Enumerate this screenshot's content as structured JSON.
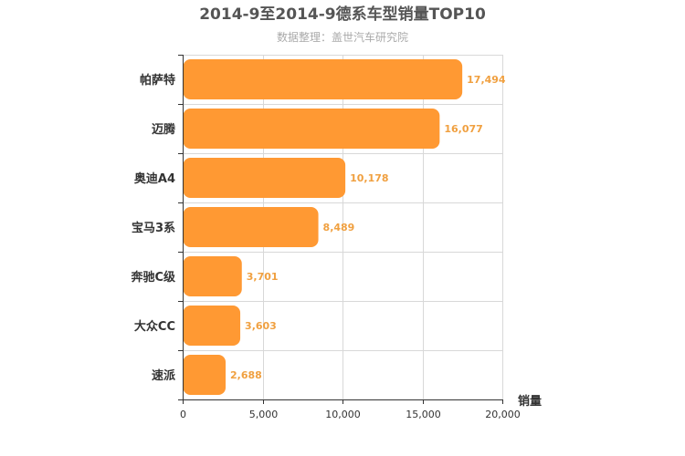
{
  "chart_data": {
    "type": "bar",
    "orientation": "horizontal",
    "title": "2014-9至2014-9德系车型销量TOP10",
    "subtitle": "数据整理：盖世汽车研究院",
    "xlabel": "销量",
    "ylabel": "",
    "categories": [
      "帕萨特",
      "迈腾",
      "奥迪A4",
      "宝马3系",
      "奔驰C级",
      "大众CC",
      "速派"
    ],
    "values": [
      17494,
      16077,
      10178,
      8489,
      3701,
      3603,
      2688
    ],
    "value_labels": [
      "17,494",
      "16,077",
      "10,178",
      "8,489",
      "3,701",
      "3,603",
      "2,688"
    ],
    "xlim": [
      0,
      20000
    ],
    "ticks": [
      0,
      5000,
      10000,
      15000,
      20000
    ],
    "tick_labels": [
      "0",
      "5,000",
      "10,000",
      "15,000",
      "20,000"
    ],
    "grid": true,
    "bar_color": "#ff9933",
    "label_color": "#f0a040"
  }
}
